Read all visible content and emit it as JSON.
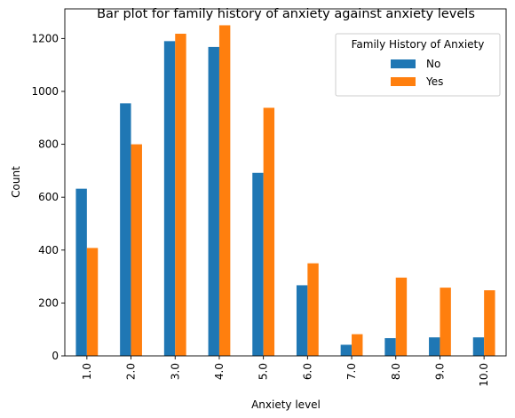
{
  "chart_data": {
    "type": "bar",
    "title": "Bar plot for family history of anxiety against anxiety levels",
    "xlabel": "Anxiety level",
    "ylabel": "Count",
    "categories": [
      "1.0",
      "2.0",
      "3.0",
      "4.0",
      "5.0",
      "6.0",
      "7.0",
      "8.0",
      "9.0",
      "10.0"
    ],
    "series": [
      {
        "name": "No",
        "color": "#1f77b4",
        "values": [
          632,
          955,
          1190,
          1168,
          692,
          267,
          42,
          67,
          70,
          70
        ]
      },
      {
        "name": "Yes",
        "color": "#ff7f0e",
        "values": [
          408,
          800,
          1218,
          1250,
          938,
          350,
          82,
          296,
          258,
          248
        ]
      }
    ],
    "ylim": [
      0,
      1312
    ],
    "yticks": [
      "0",
      "200",
      "400",
      "600",
      "800",
      "1000",
      "1200"
    ],
    "legend": {
      "title": "Family History of Anxiety",
      "position": "top-right"
    },
    "grid": false
  }
}
